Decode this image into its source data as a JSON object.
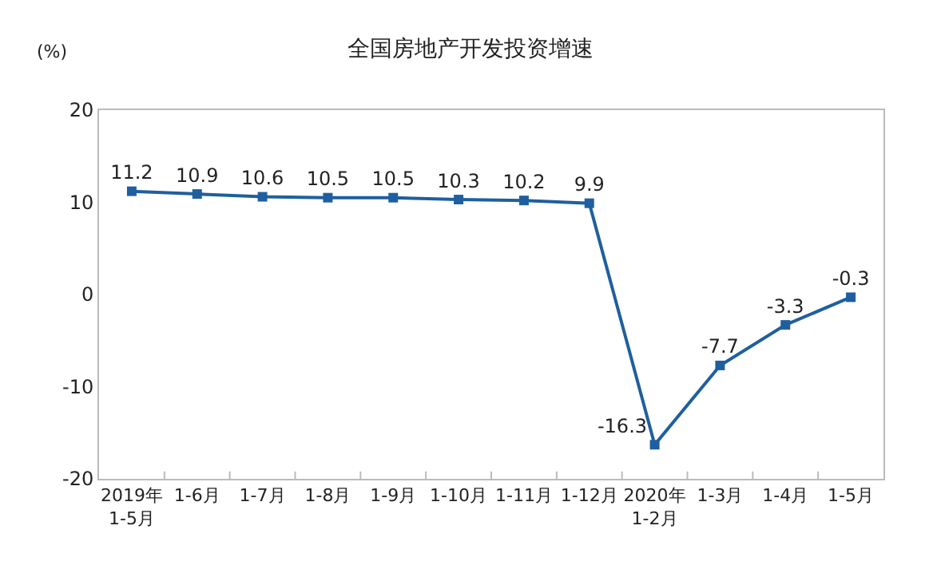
{
  "chart_data": {
    "type": "line",
    "title": "全国房地产开发投资增速",
    "ylabel": "(%)",
    "categories": [
      "2019年\n1-5月",
      "1-6月",
      "1-7月",
      "1-8月",
      "1-9月",
      "1-10月",
      "1-11月",
      "1-12月",
      "2020年\n1-2月",
      "1-3月",
      "1-4月",
      "1-5月"
    ],
    "series": [
      {
        "color": "#1f5f9f",
        "values": [
          11.2,
          10.9,
          10.6,
          10.5,
          10.5,
          10.3,
          10.2,
          9.9,
          -16.3,
          -7.7,
          -3.3,
          -0.3
        ]
      }
    ],
    "ylim": [
      -20,
      20
    ],
    "yticks": [
      -20,
      -10,
      0,
      10,
      20
    ],
    "marker": "square",
    "line_style": "solid",
    "data_labels": true
  }
}
